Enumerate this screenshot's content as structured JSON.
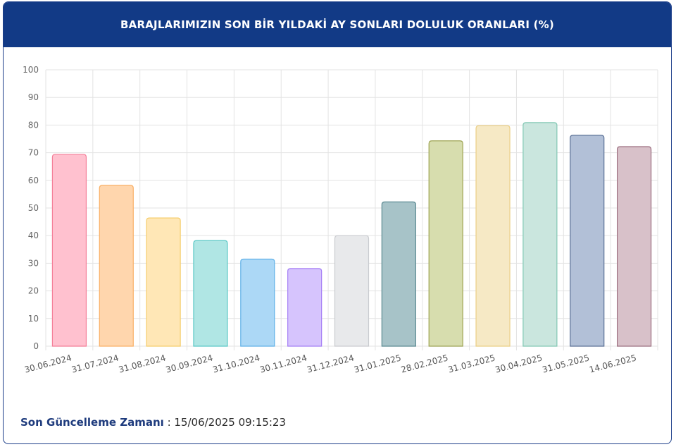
{
  "header": {
    "title": "BARAJLARIMIZIN SON BİR YILDAKİ AY SONLARI DOLULUK ORANLARI (%)"
  },
  "footer": {
    "label": "Son Güncelleme Zamanı",
    "separator": " : ",
    "value": "15/06/2025 09:15:23"
  },
  "chart_data": {
    "type": "bar",
    "title": "BARAJLARIMIZIN SON BİR YILDAKİ AY SONLARI DOLULUK ORANLARI (%)",
    "xlabel": "",
    "ylabel": "",
    "ylim": [
      0,
      100
    ],
    "yticks": [
      0,
      10,
      20,
      30,
      40,
      50,
      60,
      70,
      80,
      90,
      100
    ],
    "grid": true,
    "legend": "none",
    "categories": [
      "30.06.2024",
      "31.07.2024",
      "31.08.2024",
      "30.09.2024",
      "31.10.2024",
      "30.11.2024",
      "31.12.2024",
      "31.01.2025",
      "28.02.2025",
      "31.03.2025",
      "30.04.2025",
      "31.05.2025",
      "14.06.2025"
    ],
    "values": [
      69.4,
      58.2,
      46.4,
      38.2,
      31.5,
      28.1,
      40.0,
      52.2,
      74.3,
      79.8,
      80.9,
      76.3,
      72.2
    ],
    "fill_colors": [
      "#ffc1cf",
      "#ffd6ad",
      "#ffe7b6",
      "#b0e6e4",
      "#acd8f6",
      "#d6c4fd",
      "#e8e9eb",
      "#a7c3c8",
      "#d7ddae",
      "#f6e9c5",
      "#cae6de",
      "#b2c0d7",
      "#d8c1c9"
    ],
    "border_colors": [
      "#f47e98",
      "#f9b066",
      "#f5cd6b",
      "#5bc8c6",
      "#5fb1e8",
      "#a57ff5",
      "#c9cbcf",
      "#5b8a92",
      "#9ea454",
      "#ebcf85",
      "#82c8b4",
      "#5c7297",
      "#9c6f80"
    ]
  }
}
